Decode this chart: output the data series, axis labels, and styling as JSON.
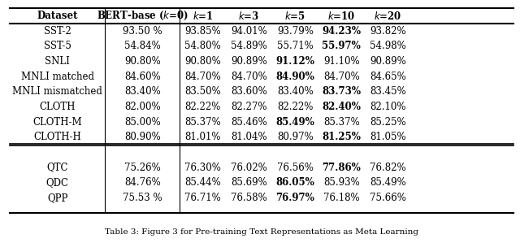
{
  "title": "Table 3: Figure 3 for Pre-training Text Representations as Meta Learning",
  "caption": "Table 3: Figure 3 for Pre-training Text Representations as Meta Learning",
  "columns": [
    "Dataset",
    "BERT-base (k=0)",
    "k=1",
    "k=3",
    "k=5",
    "k=10",
    "k=20"
  ],
  "col_headers_italic": [
    false,
    false,
    true,
    true,
    true,
    true,
    true
  ],
  "col_headers_bold": [
    true,
    true,
    true,
    true,
    true,
    true,
    true
  ],
  "rows_group1": [
    [
      "SST-2",
      "93.50 %",
      "93.85%",
      "94.01%",
      "93.79%",
      "94.23%",
      "93.82%"
    ],
    [
      "SST-5",
      "54.84%",
      "54.80%",
      "54.89%",
      "55.71%",
      "55.97%",
      "54.98%"
    ],
    [
      "SNLI",
      "90.80%",
      "90.80%",
      "90.89%",
      "91.12%",
      "91.10%",
      "90.89%"
    ],
    [
      "MNLI matched",
      "84.60%",
      "84.70%",
      "84.70%",
      "84.90%",
      "84.70%",
      "84.65%"
    ],
    [
      "MNLI mismatched",
      "83.40%",
      "83.50%",
      "83.60%",
      "83.40%",
      "83.73%",
      "83.45%"
    ],
    [
      "CLOTH",
      "82.00%",
      "82.22%",
      "82.27%",
      "82.22%",
      "82.40%",
      "82.10%"
    ],
    [
      "CLOTH-M",
      "85.00%",
      "85.37%",
      "85.46%",
      "85.49%",
      "85.37%",
      "85.25%"
    ],
    [
      "CLOTH-H",
      "80.90%",
      "81.01%",
      "81.04%",
      "80.97%",
      "81.25%",
      "81.05%"
    ]
  ],
  "bold_group1": [
    [
      false,
      false,
      false,
      false,
      true,
      false
    ],
    [
      false,
      false,
      false,
      false,
      true,
      false
    ],
    [
      false,
      false,
      false,
      true,
      false,
      false
    ],
    [
      false,
      false,
      false,
      true,
      false,
      false
    ],
    [
      false,
      false,
      false,
      false,
      true,
      false
    ],
    [
      false,
      false,
      false,
      false,
      true,
      false
    ],
    [
      false,
      false,
      false,
      true,
      false,
      false
    ],
    [
      false,
      false,
      false,
      false,
      true,
      false
    ]
  ],
  "rows_group2": [
    [
      "QTC",
      "75.26%",
      "76.30%",
      "76.02%",
      "76.56%",
      "77.86%",
      "76.82%"
    ],
    [
      "QDC",
      "84.76%",
      "85.44%",
      "85.69%",
      "86.05%",
      "85.93%",
      "85.49%"
    ],
    [
      "QPP",
      "75.53 %",
      "76.71%",
      "76.58%",
      "76.97%",
      "76.18%",
      "75.66%"
    ]
  ],
  "bold_group2": [
    [
      false,
      false,
      false,
      false,
      true,
      false
    ],
    [
      false,
      false,
      false,
      true,
      false,
      false
    ],
    [
      false,
      false,
      false,
      true,
      false,
      false
    ]
  ],
  "background_color": "#ffffff",
  "text_color": "#000000",
  "font_size": 8.5,
  "header_font_size": 8.5
}
